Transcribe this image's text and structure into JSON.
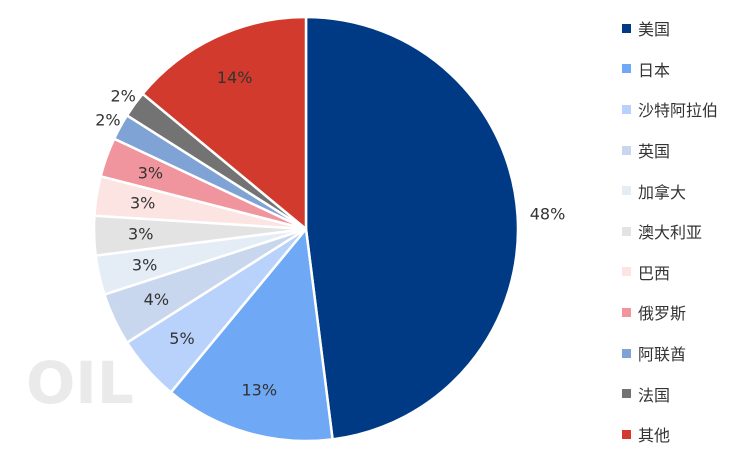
{
  "chart_data": {
    "type": "pie",
    "title": "",
    "slices": [
      {
        "name": "美国",
        "value": 48,
        "label": "48%",
        "color": "#003A84"
      },
      {
        "name": "日本",
        "value": 13,
        "label": "13%",
        "color": "#6FA8F5"
      },
      {
        "name": "沙特阿拉伯",
        "value": 5,
        "label": "5%",
        "color": "#B9D2FB"
      },
      {
        "name": "英国",
        "value": 4,
        "label": "4%",
        "color": "#C8D7EE"
      },
      {
        "name": "加拿大",
        "value": 3,
        "label": "3%",
        "color": "#E4ECF6"
      },
      {
        "name": "澳大利亚",
        "value": 3,
        "label": "3%",
        "color": "#E3E3E3"
      },
      {
        "name": "巴西",
        "value": 3,
        "label": "3%",
        "color": "#FBE4E2"
      },
      {
        "name": "俄罗斯",
        "value": 3,
        "label": "3%",
        "color": "#F0949E"
      },
      {
        "name": "阿联酋",
        "value": 2,
        "label": "2%",
        "color": "#7FA3D5"
      },
      {
        "name": "法国",
        "value": 2,
        "label": "2%",
        "color": "#737373"
      },
      {
        "name": "其他",
        "value": 14,
        "label": "14%",
        "color": "#D13A2C"
      }
    ],
    "legend_position": "right",
    "start_angle": "12 o'clock, clockwise"
  },
  "watermark_text": "OIL"
}
